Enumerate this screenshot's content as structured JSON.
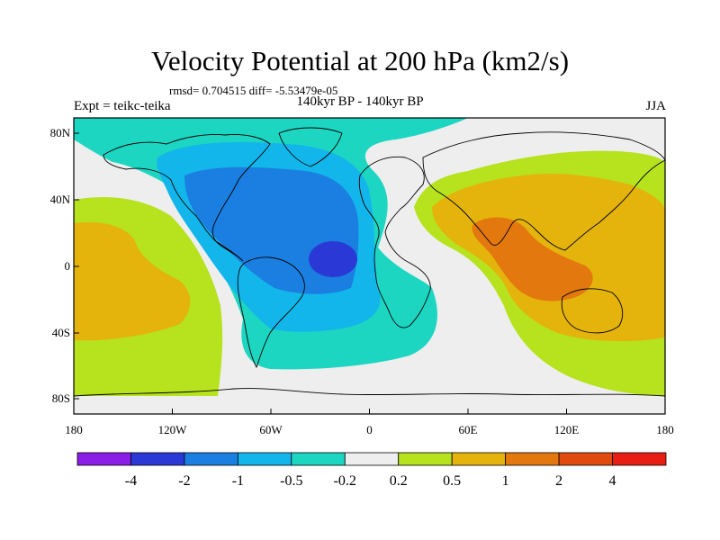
{
  "title": "Velocity Potential at 200 hPa (km2/s)",
  "stats": "rmsd= 0.704515 diff= -5.53479e-05",
  "left_label": "Expt = teikc-teika",
  "center_label": "140kyr BP - 140kyr BP",
  "right_label": "JJA",
  "x_ticks": [
    "180",
    "120W",
    "60W",
    "0",
    "60E",
    "120E",
    "180"
  ],
  "y_ticks": [
    "80N",
    "40N",
    "0",
    "40S",
    "80S"
  ],
  "colorbar": {
    "labels": [
      "-4",
      "-2",
      "-1",
      "-0.5",
      "-0.2",
      "0.2",
      "0.5",
      "1",
      "2",
      "4"
    ],
    "colors": [
      "#8a1ee6",
      "#2a38d6",
      "#1a7fe0",
      "#13b6ea",
      "#1cd6c2",
      "#eeeeee",
      "#b6e21e",
      "#e4b40c",
      "#e2780e",
      "#e04a0e",
      "#e81e14"
    ]
  },
  "colors": {
    "neutral": "#eeeeee",
    "teal": "#1cd6c2",
    "sky": "#13b6ea",
    "blue": "#1a7fe0",
    "deep": "#2a38d6",
    "lime": "#b6e21e",
    "yellow": "#e4b40c",
    "orange": "#e2780e"
  }
}
